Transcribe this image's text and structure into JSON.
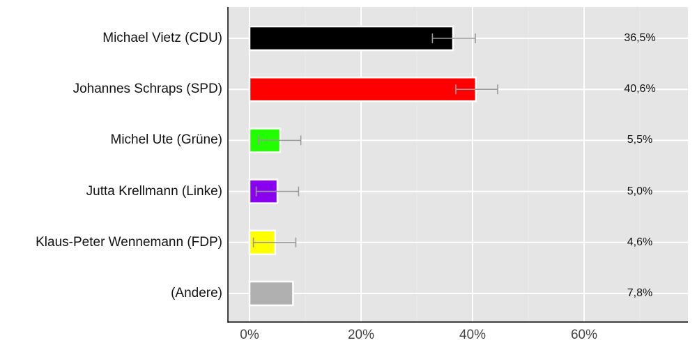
{
  "chart_data": {
    "type": "bar",
    "orientation": "horizontal",
    "title": "",
    "xlabel": "",
    "ylabel": "",
    "xlim": [
      -3.8,
      78.6
    ],
    "grid": true,
    "legend": null,
    "x_ticks": [
      "0%",
      "20%",
      "40%",
      "60%"
    ],
    "categories": [
      "Michael Vietz (CDU)",
      "Johannes Schraps (SPD)",
      "Michel Ute (Grüne)",
      "Jutta Krellmann (Linke)",
      "Klaus-Peter Wennemann (FDP)",
      "(Andere)"
    ],
    "values": [
      36.5,
      40.6,
      5.5,
      5.0,
      4.6,
      7.8
    ],
    "value_labels": [
      "36,5%",
      "40,6%",
      "5,5%",
      "5,0%",
      "4,6%",
      "7,8%"
    ],
    "colors": [
      "#000000",
      "#ff0000",
      "#22ff00",
      "#8800ee",
      "#ffff00",
      "#b0b0b0"
    ],
    "error_bars": [
      {
        "low": 32.8,
        "high": 40.5
      },
      {
        "low": 37.0,
        "high": 44.5
      },
      {
        "low": 1.6,
        "high": 9.2
      },
      {
        "low": 1.2,
        "high": 8.8
      },
      {
        "low": 0.7,
        "high": 8.3
      },
      null
    ]
  },
  "style": {
    "panel_bg": "#e5e5e5",
    "grid_color": "#ffffff",
    "errorbar_color": "#999999",
    "axis_color": "#000000"
  }
}
